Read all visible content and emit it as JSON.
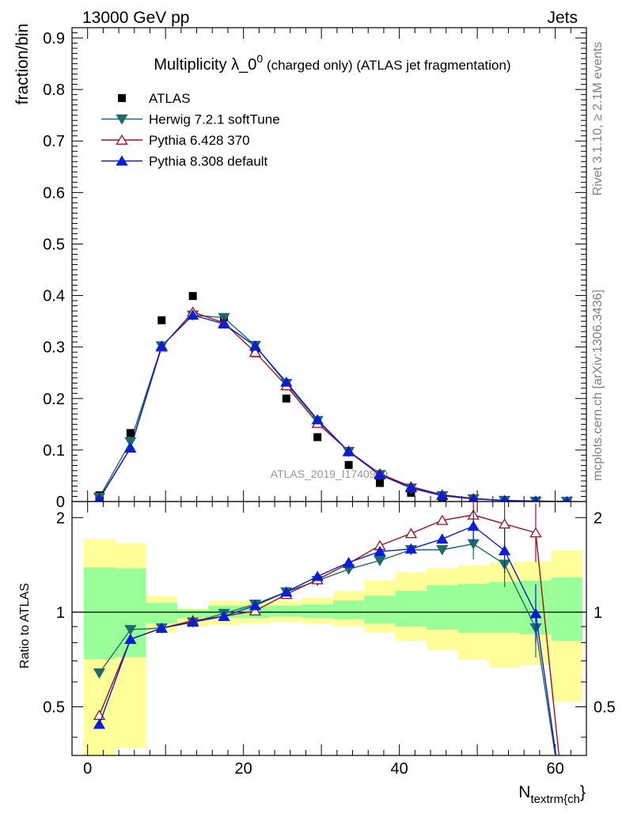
{
  "header": {
    "left": "13000 GeV pp",
    "right": "Jets"
  },
  "side": {
    "rivet": "Rivet 3.1.10, ≥ 2.1M events",
    "mcplots": "mcplots.cern.ch [arXiv:1306.3436]"
  },
  "chart_data": {
    "type": "line",
    "title_main": "Multiplicity λ_0",
    "title_sup": "0",
    "title_rest": " (charged only) (ATLAS jet fragmentation)",
    "watermark": "ATLAS_2019_I1740909",
    "xlabel_main": "N",
    "xlabel_sub": "textrm{ch",
    "xlabel_end": "}",
    "ylabel": "fraction/bin",
    "ratio_ylabel": "Ratio to ATLAS",
    "xlim": [
      -2,
      64
    ],
    "ylim": [
      0,
      0.92
    ],
    "ratio_ylim": [
      0.35,
      2.25
    ],
    "x_ticks": [
      0,
      20,
      40,
      60
    ],
    "y_ticks": [
      0,
      0.1,
      0.2,
      0.3,
      0.4,
      0.5,
      0.6,
      0.7,
      0.8,
      0.9
    ],
    "y_tick_labels": [
      "0",
      "0.1",
      "0.2",
      "0.3",
      "0.4",
      "0.5",
      "0.6",
      "0.7",
      "0.8",
      "0.9"
    ],
    "ratio_ticks": [
      0.5,
      1,
      2
    ],
    "ratio_tick_labels": [
      "0.5",
      "1",
      "2"
    ],
    "legend_position": "top-left",
    "data": {
      "name": "ATLAS",
      "x": [
        1.5,
        5.5,
        9.5,
        13.5,
        17.5,
        21.5,
        25.5,
        29.5,
        33.5,
        37.5,
        41.5,
        45.5,
        49.5,
        53.5,
        57.5,
        61.5
      ],
      "y": [
        0.012,
        0.133,
        0.352,
        0.399,
        0.358,
        0.288,
        0.2,
        0.125,
        0.071,
        0.036,
        0.017,
        0.007,
        0.003,
        0.001,
        0.0005,
        0.0002
      ]
    },
    "series": [
      {
        "name": "Herwig 7.2.1 softTune",
        "marker": "triangle-down",
        "color": "#1f6a6a",
        "x": [
          1.5,
          5.5,
          9.5,
          13.5,
          17.5,
          21.5,
          25.5,
          29.5,
          33.5,
          37.5,
          41.5,
          45.5,
          49.5,
          53.5,
          57.5,
          61.5
        ],
        "y": [
          0.008,
          0.116,
          0.302,
          0.362,
          0.357,
          0.303,
          0.229,
          0.157,
          0.097,
          0.052,
          0.026,
          0.011,
          0.005,
          0.002,
          0.0004,
          0.0
        ],
        "ratio": [
          0.64,
          0.88,
          0.89,
          0.93,
          0.99,
          1.06,
          1.16,
          1.26,
          1.37,
          1.46,
          1.58,
          1.58,
          1.65,
          1.42,
          0.89,
          0.2
        ]
      },
      {
        "name": "Pythia 6.428 370",
        "marker": "triangle-up-open",
        "color": "#a01020",
        "x": [
          1.5,
          5.5,
          9.5,
          13.5,
          17.5,
          21.5,
          25.5,
          29.5,
          33.5,
          37.5,
          41.5,
          45.5,
          49.5,
          53.5,
          57.5,
          61.5
        ],
        "y": [
          0.005,
          0.104,
          0.3,
          0.368,
          0.347,
          0.29,
          0.225,
          0.152,
          0.098,
          0.054,
          0.029,
          0.013,
          0.006,
          0.002,
          0.001,
          0.0
        ],
        "ratio": [
          0.47,
          0.82,
          0.89,
          0.94,
          0.97,
          1.01,
          1.14,
          1.27,
          1.43,
          1.63,
          1.78,
          1.96,
          2.04,
          1.91,
          1.79,
          0.2
        ]
      },
      {
        "name": "Pythia 8.308 default",
        "marker": "triangle-up",
        "color": "#0a1ed8",
        "x": [
          1.5,
          5.5,
          9.5,
          13.5,
          17.5,
          21.5,
          25.5,
          29.5,
          33.5,
          37.5,
          41.5,
          45.5,
          49.5,
          53.5,
          57.5,
          61.5
        ],
        "y": [
          0.005,
          0.104,
          0.302,
          0.362,
          0.345,
          0.302,
          0.232,
          0.159,
          0.097,
          0.052,
          0.027,
          0.012,
          0.005,
          0.002,
          0.0005,
          0.0
        ],
        "ratio": [
          0.44,
          0.82,
          0.89,
          0.93,
          0.97,
          1.05,
          1.16,
          1.3,
          1.44,
          1.56,
          1.59,
          1.71,
          1.88,
          1.57,
          0.99,
          0.2
        ]
      }
    ],
    "bands": {
      "x_edges": [
        -0.5,
        3.5,
        7.5,
        11.5,
        15.5,
        19.5,
        23.5,
        27.5,
        31.5,
        35.5,
        39.5,
        43.5,
        47.5,
        51.5,
        55.5,
        59.5,
        63.5
      ],
      "yellow_low": [
        0.35,
        0.37,
        0.86,
        0.9,
        0.91,
        0.92,
        0.93,
        0.92,
        0.9,
        0.86,
        0.81,
        0.76,
        0.71,
        0.67,
        0.68,
        0.52
      ],
      "yellow_high": [
        1.71,
        1.66,
        1.13,
        1.03,
        1.09,
        1.09,
        1.09,
        1.11,
        1.17,
        1.26,
        1.34,
        1.38,
        1.41,
        1.44,
        1.45,
        1.57
      ],
      "green_low": [
        0.71,
        0.72,
        0.92,
        0.96,
        0.96,
        0.96,
        0.97,
        0.96,
        0.95,
        0.92,
        0.9,
        0.88,
        0.86,
        0.86,
        0.85,
        0.81
      ],
      "green_high": [
        1.39,
        1.38,
        1.07,
        1.02,
        1.05,
        1.05,
        1.05,
        1.06,
        1.09,
        1.13,
        1.17,
        1.22,
        1.23,
        1.25,
        1.26,
        1.29
      ]
    }
  }
}
